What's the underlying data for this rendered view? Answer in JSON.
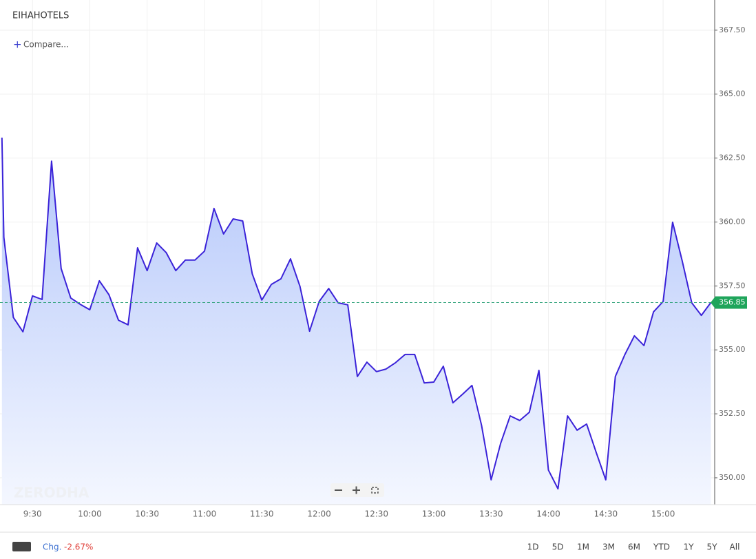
{
  "header": {
    "symbol": "EIHAHOTELS",
    "compare": "Compare...",
    "watermark": "ZERODHA"
  },
  "footer": {
    "chg_label": "Chg.",
    "chg_value": "-2.67%",
    "ranges": [
      "1D",
      "5D",
      "1M",
      "3M",
      "6M",
      "YTD",
      "1Y",
      "5Y",
      "All"
    ]
  },
  "chart_data": {
    "type": "line",
    "color": "#3a22d8",
    "fill": true,
    "grid": true,
    "x": [
      "9:14",
      "9:15",
      "9:20",
      "9:25",
      "9:30",
      "9:35",
      "9:40",
      "9:45",
      "9:50",
      "9:55",
      "10:00",
      "10:05",
      "10:10",
      "10:15",
      "10:20",
      "10:25",
      "10:30",
      "10:35",
      "10:40",
      "10:45",
      "10:50",
      "10:55",
      "11:00",
      "11:05",
      "11:10",
      "11:15",
      "11:20",
      "11:25",
      "11:30",
      "11:35",
      "11:40",
      "11:45",
      "11:50",
      "11:55",
      "12:00",
      "12:05",
      "12:10",
      "12:15",
      "12:20",
      "12:25",
      "12:30",
      "12:35",
      "12:40",
      "12:45",
      "12:50",
      "12:55",
      "13:00",
      "13:05",
      "13:10",
      "13:15",
      "13:20",
      "13:25",
      "13:30",
      "13:35",
      "13:40",
      "13:45",
      "13:50",
      "13:55",
      "14:00",
      "14:05",
      "14:10",
      "14:15",
      "14:20",
      "14:25",
      "14:30",
      "14:35",
      "14:40",
      "14:45",
      "14:50",
      "14:55",
      "15:00",
      "15:05",
      "15:10",
      "15:15",
      "15:20",
      "15:25"
    ],
    "values": [
      363.3,
      359.4,
      356.27,
      355.71,
      357.11,
      356.97,
      362.38,
      358.18,
      357.03,
      356.78,
      356.57,
      357.7,
      357.16,
      356.16,
      355.98,
      358.99,
      358.1,
      359.18,
      358.8,
      358.1,
      358.51,
      358.51,
      358.86,
      360.53,
      359.53,
      360.12,
      360.04,
      357.97,
      356.95,
      357.56,
      357.78,
      358.56,
      357.48,
      355.73,
      356.89,
      357.4,
      356.84,
      356.76,
      353.96,
      354.52,
      354.15,
      354.25,
      354.5,
      354.82,
      354.82,
      353.71,
      353.74,
      354.36,
      352.93,
      353.26,
      353.61,
      352.05,
      349.92,
      351.35,
      352.42,
      352.24,
      352.56,
      354.2,
      350.3,
      349.57,
      352.42,
      351.86,
      352.1,
      350.99,
      349.92,
      353.96,
      354.82,
      355.55,
      355.17,
      356.49,
      356.89,
      359.99,
      358.48,
      356.84,
      356.35,
      356.85
    ],
    "xlim": [
      "9:13",
      "15:27"
    ],
    "xticks": [
      "9:30",
      "10:00",
      "10:30",
      "11:00",
      "11:30",
      "12:00",
      "12:30",
      "13:00",
      "13:30",
      "14:00",
      "14:30",
      "15:00"
    ],
    "ylim": [
      348.95,
      368.68
    ],
    "yticks": [
      {
        "value": 350,
        "label": "350.00"
      },
      {
        "value": 352.5,
        "label": "352.50"
      },
      {
        "value": 355,
        "label": "355.00"
      },
      {
        "value": 357.5,
        "label": "357.50"
      },
      {
        "value": 360,
        "label": "360.00"
      },
      {
        "value": 362.5,
        "label": "362.50"
      },
      {
        "value": 365,
        "label": "365.00"
      },
      {
        "value": 367.5,
        "label": "367.50"
      }
    ]
  }
}
